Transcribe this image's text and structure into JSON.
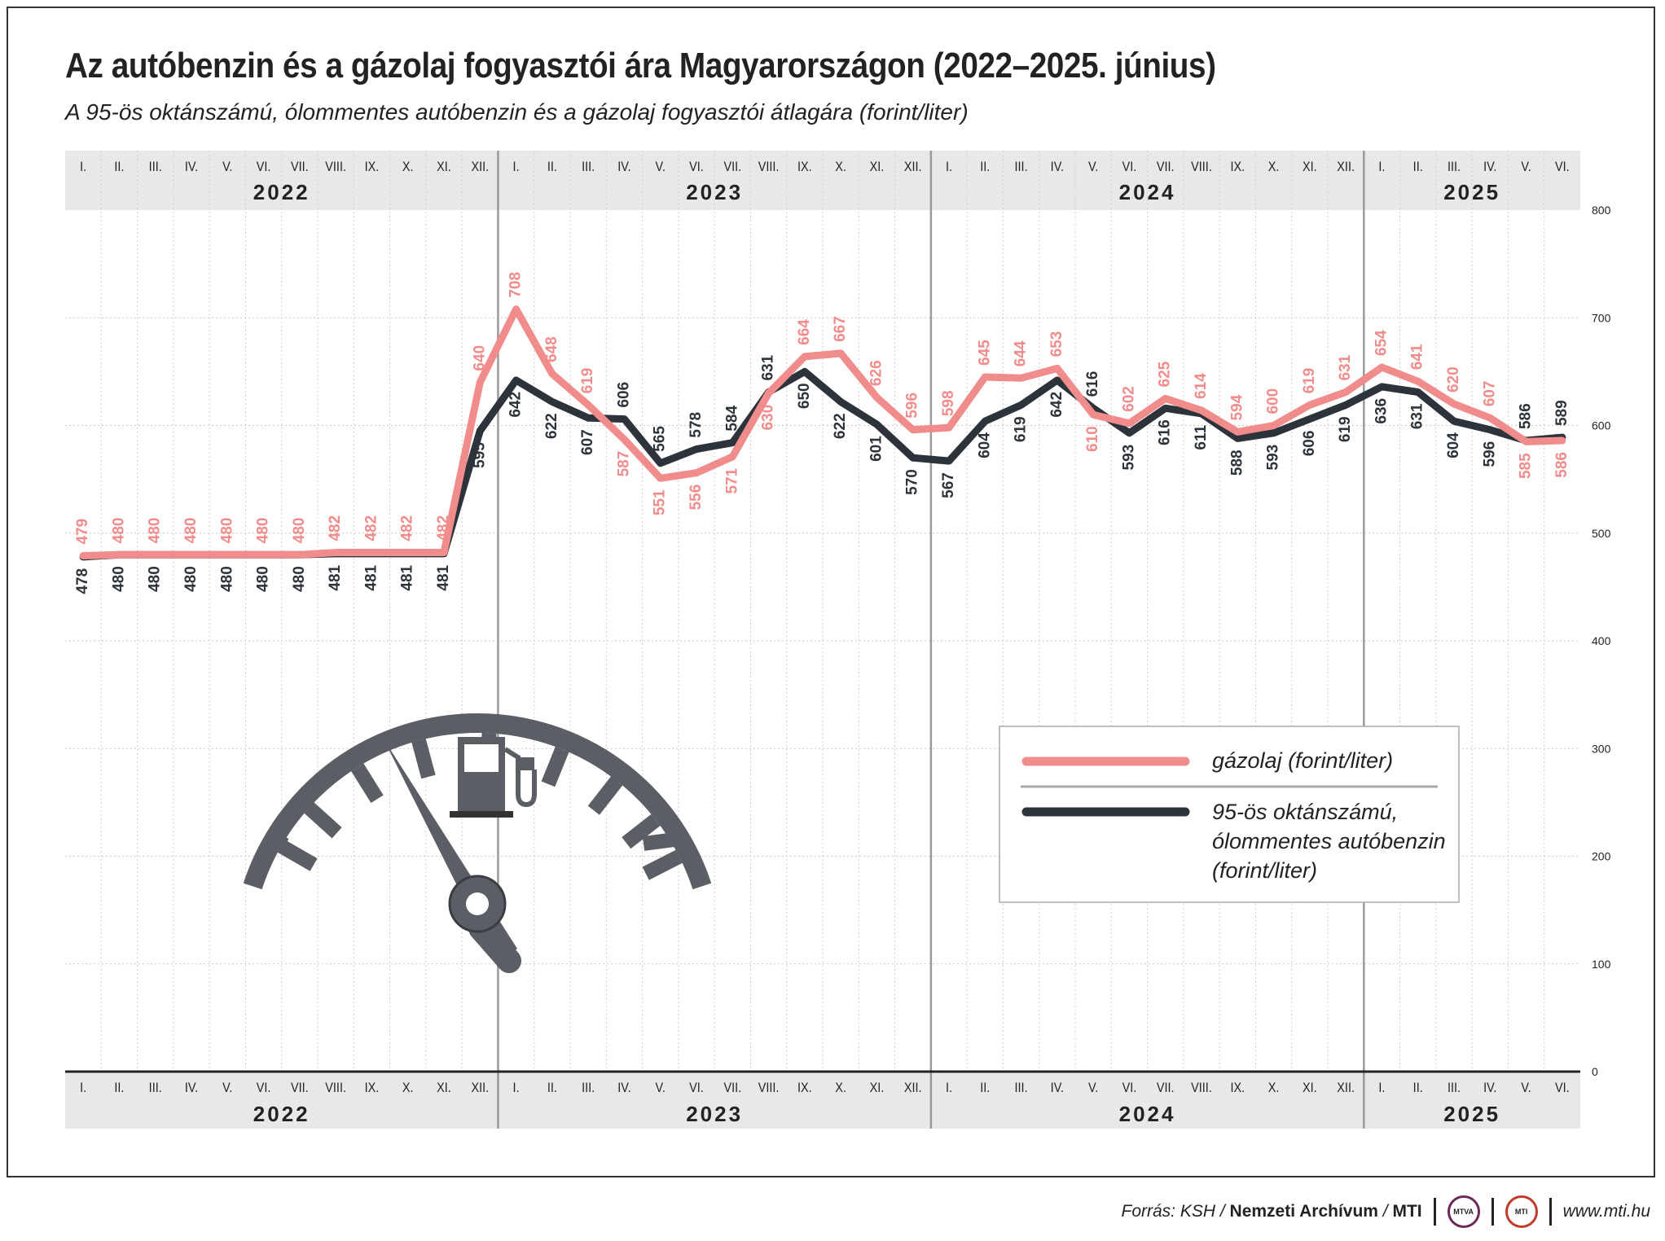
{
  "title": "Az autóbenzin és a gázolaj fogyasztói ára Magyarországon (2022–2025. június)",
  "subtitle": "A 95-ös oktánszámú, ólommentes autóbenzin és a gázolaj fogyasztói átlagára (forint/liter)",
  "footer": {
    "source_prefix": "Forrás: KSH / ",
    "source_archive": "Nemzeti Archívum",
    "source_sep": " / ",
    "source_mti": "MTI",
    "logo1": "MTVA",
    "logo2": "MTI",
    "url": "www.mti.hu"
  },
  "colors": {
    "diesel": "#f08c8c",
    "petrol": "#2d333b",
    "header_bg": "#e8e8e8"
  },
  "icon": "fuel-gauge-icon",
  "chart_data": {
    "type": "line",
    "months": [
      "I.",
      "II.",
      "III.",
      "IV.",
      "V.",
      "VI.",
      "VII.",
      "VIII.",
      "IX.",
      "X.",
      "XI.",
      "XII."
    ],
    "years": [
      "2022",
      "2023",
      "2024",
      "2025"
    ],
    "months_per_year": [
      12,
      12,
      12,
      6
    ],
    "yticks": [
      "0",
      "100",
      "200",
      "300",
      "400",
      "500",
      "600",
      "700",
      "800"
    ],
    "ylim": [
      0,
      800
    ],
    "series": [
      {
        "name": "gázolaj (forint/liter)",
        "values": [
          479,
          480,
          480,
          480,
          480,
          480,
          480,
          482,
          482,
          482,
          482,
          640,
          708,
          648,
          619,
          587,
          551,
          556,
          571,
          630,
          664,
          667,
          626,
          596,
          598,
          645,
          644,
          653,
          610,
          602,
          625,
          614,
          594,
          600,
          619,
          631,
          654,
          641,
          620,
          607,
          585,
          586
        ]
      },
      {
        "name": "95-ös oktánszámú, ólommentes autóbenzin (forint/liter)",
        "legend_lines": [
          "95-ös oktánszámú,",
          "ólommentes autóbenzin",
          "(forint/liter)"
        ],
        "values": [
          478,
          480,
          480,
          480,
          480,
          480,
          480,
          481,
          481,
          481,
          481,
          595,
          642,
          622,
          607,
          606,
          565,
          578,
          584,
          631,
          650,
          622,
          601,
          570,
          567,
          604,
          619,
          642,
          616,
          593,
          616,
          611,
          588,
          593,
          606,
          619,
          636,
          631,
          604,
          596,
          586,
          589
        ]
      }
    ]
  }
}
